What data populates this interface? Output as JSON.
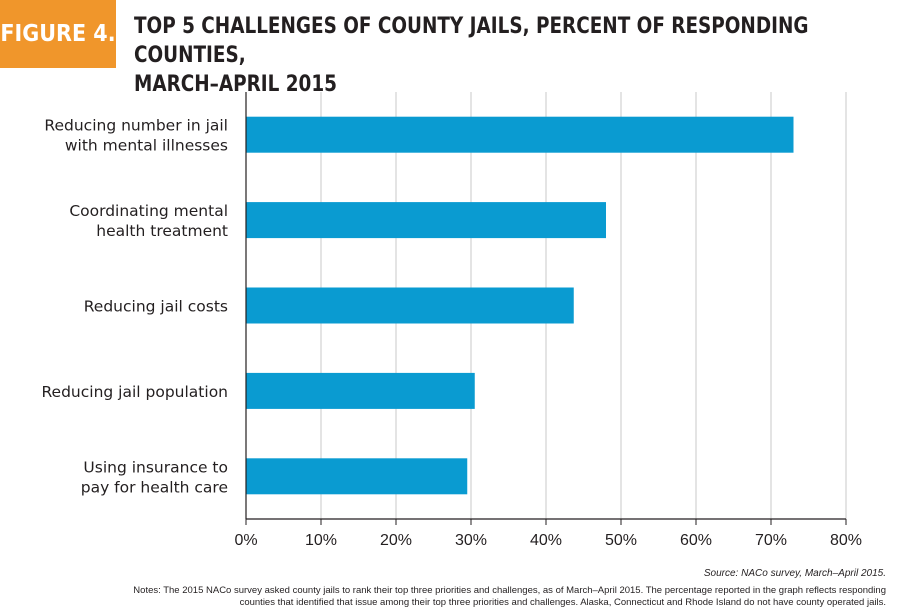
{
  "figure_label": "FIGURE 4.",
  "title_line1": "TOP 5 CHALLENGES OF COUNTY JAILS, PERCENT OF RESPONDING COUNTIES,",
  "title_line2": "MARCH–APRIL 2015",
  "source": "Source: NACo survey, March–April 2015.",
  "notes_line1": "Notes: The 2015 NACo survey asked county jails to rank their top three priorities and challenges, as of March–April 2015. The percentage reported in the graph reflects responding",
  "notes_line2": "counties that identified that issue among their top three priorities and challenges. Alaska, Connecticut and Rhode Island do not have county operated jails.",
  "colors": {
    "bar": "#0a9bd1",
    "badge": "#f0962b",
    "grid": "#c8c8c8",
    "axis": "#231f20"
  },
  "chart_data": {
    "type": "bar",
    "orientation": "horizontal",
    "categories": [
      [
        "Reducing number in jail",
        "with mental illnesses"
      ],
      [
        "Coordinating mental",
        "health treatment"
      ],
      [
        "Reducing jail costs"
      ],
      [
        "Reducing jail population"
      ],
      [
        "Using insurance to",
        "pay for health care"
      ]
    ],
    "values": [
      73,
      48,
      43.7,
      30.5,
      29.5
    ],
    "unit": "%",
    "xlim": [
      0,
      80
    ],
    "xticks": [
      0,
      10,
      20,
      30,
      40,
      50,
      60,
      70,
      80
    ],
    "xtick_labels": [
      "0%",
      "10%",
      "20%",
      "30%",
      "40%",
      "50%",
      "60%",
      "70%",
      "80%"
    ],
    "grid": true,
    "legend": "none"
  }
}
